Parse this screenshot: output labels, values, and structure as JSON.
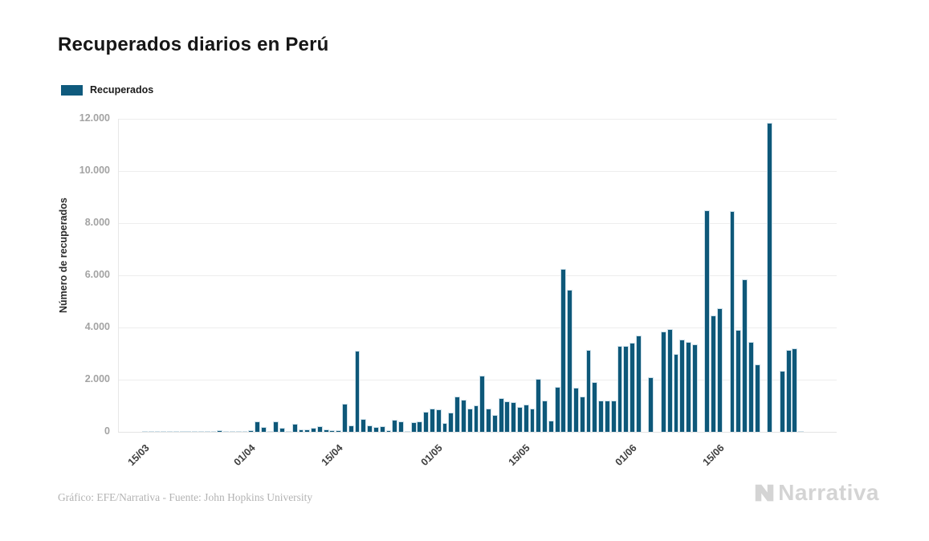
{
  "title": "Recuperados diarios en Perú",
  "legend": {
    "label": "Recuperados",
    "color": "#0f5a7d"
  },
  "y_axis": {
    "title": "Número de recuperados",
    "tick_labels": [
      "0",
      "2.000",
      "4.000",
      "6.000",
      "8.000",
      "10.000",
      "12.000"
    ],
    "tick_values": [
      0,
      2000,
      4000,
      6000,
      8000,
      10000,
      12000
    ]
  },
  "x_axis": {
    "tick_labels": [
      "15/03",
      "01/04",
      "15/04",
      "01/05",
      "15/05",
      "01/06",
      "15/06"
    ],
    "tick_indices": [
      1,
      18,
      32,
      48,
      62,
      79,
      93
    ]
  },
  "footer": {
    "credit": "Gráfico: EFE/Narrativa - Fuente: John Hopkins University",
    "brand": "Narrativa"
  },
  "chart_data": {
    "type": "bar",
    "title": "Recuperados diarios en Perú",
    "xlabel": "",
    "ylabel": "Número de recuperados",
    "ylim": [
      0,
      12000
    ],
    "grid": "horizontal",
    "legend_position": "top-left",
    "series_name": "Recuperados",
    "bar_color": "#0e5879",
    "x": [
      "14/03",
      "15/03",
      "16/03",
      "17/03",
      "18/03",
      "19/03",
      "20/03",
      "21/03",
      "22/03",
      "23/03",
      "24/03",
      "25/03",
      "26/03",
      "27/03",
      "28/03",
      "29/03",
      "30/03",
      "31/03",
      "01/04",
      "02/04",
      "03/04",
      "04/04",
      "05/04",
      "06/04",
      "07/04",
      "08/04",
      "09/04",
      "10/04",
      "11/04",
      "12/04",
      "13/04",
      "14/04",
      "15/04",
      "16/04",
      "17/04",
      "18/04",
      "19/04",
      "20/04",
      "21/04",
      "22/04",
      "23/04",
      "24/04",
      "25/04",
      "26/04",
      "27/04",
      "28/04",
      "29/04",
      "30/04",
      "01/05",
      "02/05",
      "03/05",
      "04/05",
      "05/05",
      "06/05",
      "07/05",
      "08/05",
      "09/05",
      "10/05",
      "11/05",
      "12/05",
      "13/05",
      "14/05",
      "15/05",
      "16/05",
      "17/05",
      "18/05",
      "19/05",
      "20/05",
      "21/05",
      "22/05",
      "23/05",
      "24/05",
      "25/05",
      "26/05",
      "27/05",
      "28/05",
      "29/05",
      "30/05",
      "31/05",
      "01/06",
      "02/06",
      "03/06",
      "04/06",
      "05/06",
      "06/06",
      "07/06",
      "08/06",
      "09/06",
      "10/06",
      "11/06",
      "12/06",
      "13/06",
      "14/06",
      "15/06",
      "16/06",
      "17/06",
      "18/06",
      "19/06",
      "20/06",
      "21/06",
      "22/06",
      "23/06",
      "24/06",
      "25/06",
      "26/06",
      "27/06"
    ],
    "values": [
      8,
      10,
      10,
      12,
      12,
      14,
      12,
      15,
      14,
      16,
      15,
      18,
      50,
      45,
      20,
      25,
      20,
      70,
      400,
      180,
      30,
      400,
      150,
      30,
      300,
      100,
      90,
      150,
      205,
      100,
      60,
      60,
      1080,
      250,
      3100,
      480,
      260,
      200,
      230,
      60,
      460,
      410,
      30,
      360,
      390,
      770,
      900,
      850,
      340,
      740,
      1350,
      1220,
      900,
      1020,
      2160,
      890,
      660,
      1300,
      1170,
      1140,
      940,
      1040,
      900,
      2040,
      1190,
      430,
      1730,
      6240,
      5460,
      1680,
      1360,
      3140,
      1900,
      1200,
      1200,
      1200,
      3300,
      3300,
      3420,
      3700,
      0,
      2100,
      0,
      3850,
      3950,
      3000,
      3550,
      3450,
      3350,
      0,
      8490,
      4450,
      4750,
      0,
      8450,
      3900,
      5850,
      3450,
      2600,
      0,
      11850,
      0,
      2350,
      3150,
      3200,
      40
    ]
  }
}
